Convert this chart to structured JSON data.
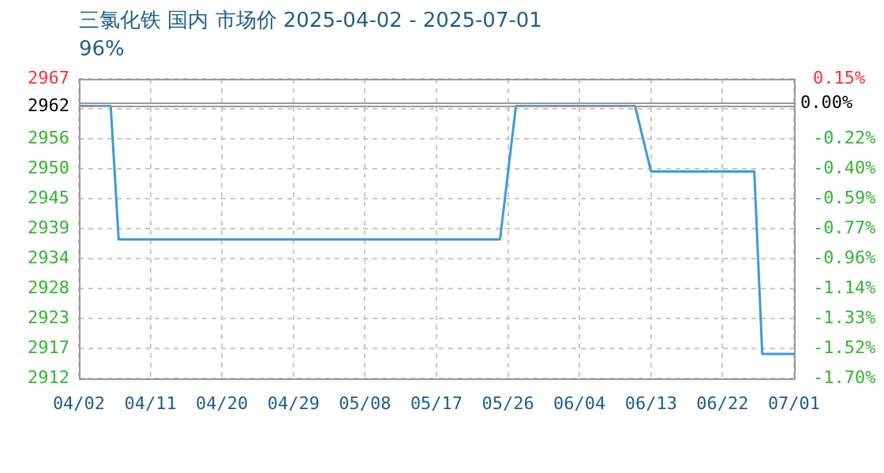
{
  "chart_data": {
    "type": "line",
    "title": "三氯化铁 国内 市场价 2025-04-02 - 2025-07-01",
    "subtitle": "96%",
    "x": [
      "2025-04-02",
      "2025-04-06",
      "2025-04-07",
      "2025-05-25",
      "2025-05-27",
      "2025-06-11",
      "2025-06-13",
      "2025-06-26",
      "2025-06-27",
      "2025-07-01"
    ],
    "series": [
      {
        "color": "#3d9ad8",
        "values": [
          2962,
          2962,
          2937.5,
          2937.5,
          2962,
          2962,
          2950,
          2950,
          2916.5,
          2916.5
        ]
      }
    ],
    "xlim": [
      "2025-04-02",
      "2025-07-01"
    ],
    "xticks": [
      {
        "value": "2025-04-02",
        "label": "04/02"
      },
      {
        "value": "2025-04-11",
        "label": "04/11"
      },
      {
        "value": "2025-04-20",
        "label": "04/20"
      },
      {
        "value": "2025-04-29",
        "label": "04/29"
      },
      {
        "value": "2025-05-08",
        "label": "05/08"
      },
      {
        "value": "2025-05-17",
        "label": "05/17"
      },
      {
        "value": "2025-05-26",
        "label": "05/26"
      },
      {
        "value": "2025-06-04",
        "label": "06/04"
      },
      {
        "value": "2025-06-13",
        "label": "06/13"
      },
      {
        "value": "2025-06-22",
        "label": "06/22"
      },
      {
        "value": "2025-07-01",
        "label": "07/01"
      }
    ],
    "ylim": [
      2912,
      2967
    ],
    "yticks": [
      2912,
      {
        "value": 2917.5,
        "label": "2917"
      },
      2923,
      {
        "value": 2928.5,
        "label": "2928"
      },
      2934,
      {
        "value": 2939.5,
        "label": "2939"
      },
      2945,
      {
        "value": 2950.5,
        "label": "2950"
      },
      2956,
      {
        "value": 2961.5,
        "label": null
      },
      2967
    ],
    "y2lim": [
      -1.7,
      0.15
    ],
    "y2ticks": [
      {
        "value": -1.7,
        "label": "-1.70%"
      },
      {
        "value": -1.515,
        "label": "-1.52%"
      },
      {
        "value": -1.33,
        "label": "-1.33%"
      },
      {
        "value": -1.145,
        "label": "-1.14%"
      },
      {
        "value": -0.96,
        "label": "-0.96%"
      },
      {
        "value": -0.775,
        "label": "-0.77%"
      },
      {
        "value": -0.59,
        "label": "-0.59%"
      },
      {
        "value": -0.405,
        "label": "-0.40%"
      },
      {
        "value": -0.22,
        "label": "-0.22%"
      },
      {
        "value": -0.035,
        "label": null
      },
      {
        "value": 0.15,
        "label": "0.15%"
      }
    ],
    "ref_lines": [
      {
        "axis": "y",
        "value": 2962,
        "label": "2962"
      },
      {
        "axis": "y2",
        "value": 0,
        "label": "0.00%"
      }
    ],
    "grid": true,
    "marker": "none",
    "line_style": "solid",
    "legend": false
  }
}
